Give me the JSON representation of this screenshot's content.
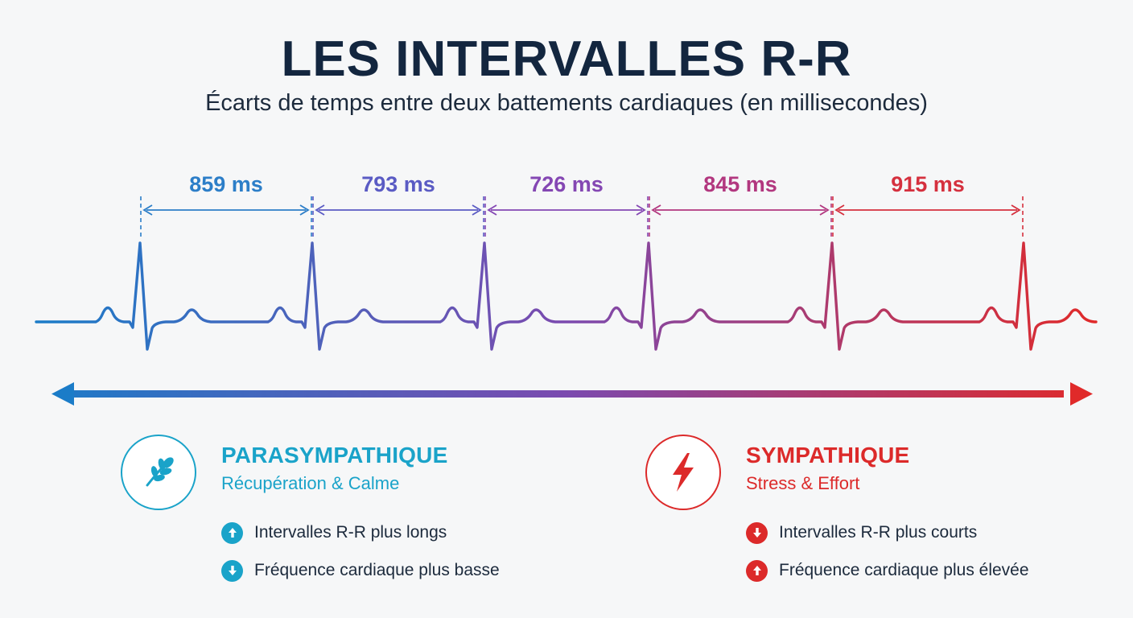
{
  "title": "LES INTERVALLES R-R",
  "subtitle": "Écarts de temps entre deux battements cardiaques (en millisecondes)",
  "intervals": [
    {
      "label": "859 ms",
      "ms": 859,
      "color": "#2c7ec8"
    },
    {
      "label": "793 ms",
      "ms": 793,
      "color": "#5a5bc4"
    },
    {
      "label": "726 ms",
      "ms": 726,
      "color": "#8447b3"
    },
    {
      "label": "845 ms",
      "ms": 845,
      "color": "#b2377f"
    },
    {
      "label": "915 ms",
      "ms": 915,
      "color": "#d5303e"
    }
  ],
  "gradient": {
    "start": "#1b7cc8",
    "mid": "#7b4aaf",
    "end": "#e02a2a"
  },
  "parasympathique": {
    "title": "PARASYMPATHIQUE",
    "subtitle": "Récupération & Calme",
    "color": "#1aa3c9",
    "icon": "leaf-icon",
    "items": [
      {
        "icon": "arrow-up-icon",
        "text": "Intervalles R-R plus longs"
      },
      {
        "icon": "arrow-down-icon",
        "text": "Fréquence cardiaque plus basse"
      }
    ]
  },
  "sympathique": {
    "title": "SYMPATHIQUE",
    "subtitle": "Stress & Effort",
    "color": "#dc2a2a",
    "icon": "lightning-icon",
    "items": [
      {
        "icon": "arrow-down-icon",
        "text": "Intervalles R-R plus courts"
      },
      {
        "icon": "arrow-up-icon",
        "text": "Fréquence cardiaque plus élevée"
      }
    ]
  }
}
